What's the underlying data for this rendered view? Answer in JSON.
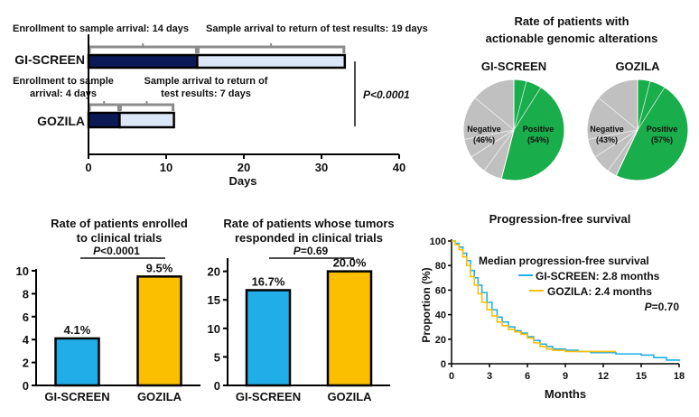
{
  "colors": {
    "dark_navy": "#0b1a57",
    "light_blue_fill": "#dbe6f6",
    "gray_bracket": "#8c8c8c",
    "pie_negative": "#c0c0c0",
    "pie_positive": "#1aad4b",
    "gi_screen": "#21aee8",
    "gozila": "#fbbf00"
  },
  "chart_data": [
    {
      "id": "timeline",
      "type": "bar",
      "orientation": "horizontal-stacked",
      "categories": [
        "GI-SCREEN",
        "GOZILA"
      ],
      "series": [
        {
          "name": "Enrollment to sample arrival",
          "values": [
            14,
            4
          ]
        },
        {
          "name": "Sample arrival to return of test results",
          "values": [
            19,
            7
          ]
        }
      ],
      "annotations": {
        "gi_seg1": "Enrollment to sample arrival: 14 days",
        "gi_seg2": "Sample arrival to return of test results: 19 days",
        "goz_seg1_line1": "Enrollment to sample",
        "goz_seg1_line2": "arrival: 4 days",
        "goz_seg2_line1": "Sample arrival to return of",
        "goz_seg2_line2": "test results: 7 days",
        "p_value": "P<0.0001"
      },
      "xlabel": "Days",
      "xlim": [
        0,
        40
      ],
      "xticks": [
        0,
        10,
        20,
        30,
        40
      ]
    },
    {
      "id": "pies",
      "type": "pie",
      "title_line1": "Rate of patients with",
      "title_line2": "actionable genomic alterations",
      "charts": [
        {
          "name": "GI-SCREEN",
          "slices": [
            {
              "label": "Negative",
              "pct_text": "(46%)",
              "value": 46
            },
            {
              "label": "Positive",
              "pct_text": "(54%)",
              "value": 54
            }
          ]
        },
        {
          "name": "GOZILA",
          "slices": [
            {
              "label": "Negative",
              "pct_text": "(43%)",
              "value": 43
            },
            {
              "label": "Positive",
              "pct_text": "(57%)",
              "value": 57
            }
          ]
        }
      ]
    },
    {
      "id": "enrolled",
      "type": "bar",
      "title_line1": "Rate of patients enrolled",
      "title_line2": "to clinical trials",
      "p_prefix": "P",
      "p_rest": "<0.0001",
      "categories": [
        "GI-SCREEN",
        "GOZILA"
      ],
      "values": [
        4.1,
        9.5
      ],
      "value_labels": [
        "4.1%",
        "9.5%"
      ],
      "ylim": [
        0,
        10
      ],
      "yticks": [
        0,
        2,
        4,
        6,
        8,
        10
      ]
    },
    {
      "id": "responded",
      "type": "bar",
      "title_line1": "Rate of patients whose tumors",
      "title_line2": "responded in clinical trials",
      "p_prefix": "P",
      "p_rest": "=0.69",
      "categories": [
        "GI-SCREEN",
        "GOZILA"
      ],
      "values": [
        16.7,
        20.0
      ],
      "value_labels": [
        "16.7%",
        "20.0%"
      ],
      "ylim": [
        0,
        22
      ],
      "yticks": [
        0,
        5,
        10,
        15,
        20
      ]
    },
    {
      "id": "pfs",
      "type": "line",
      "title": "Progression-free survival",
      "xlabel": "Months",
      "ylabel": "Proportion (%)",
      "xlim": [
        0,
        18
      ],
      "ylim": [
        0,
        100
      ],
      "xticks": [
        0,
        3,
        6,
        9,
        12,
        15,
        18
      ],
      "yticks": [
        0,
        20,
        40,
        60,
        80,
        100
      ],
      "legend_title": "Median progression-free survival",
      "p_prefix": "P",
      "p_rest": "=0.70",
      "series": [
        {
          "name": "GI-SCREEN: 2.8 months",
          "color_key": "gi_screen",
          "points": [
            [
              0,
              100
            ],
            [
              0.3,
              98
            ],
            [
              0.6,
              95
            ],
            [
              0.9,
              90
            ],
            [
              1.2,
              84
            ],
            [
              1.5,
              76
            ],
            [
              1.8,
              70
            ],
            [
              2.1,
              64
            ],
            [
              2.4,
              58
            ],
            [
              2.8,
              50
            ],
            [
              3.2,
              44
            ],
            [
              3.6,
              38
            ],
            [
              4.0,
              34
            ],
            [
              4.5,
              30
            ],
            [
              5.0,
              27
            ],
            [
              5.5,
              25
            ],
            [
              6.0,
              22
            ],
            [
              6.5,
              19
            ],
            [
              7.0,
              16
            ],
            [
              7.5,
              14
            ],
            [
              8.0,
              12
            ],
            [
              9.0,
              11
            ],
            [
              10.0,
              10
            ],
            [
              11.0,
              9
            ],
            [
              12.0,
              9
            ],
            [
              13.0,
              8
            ],
            [
              14.0,
              8
            ],
            [
              15.0,
              7
            ],
            [
              16.0,
              5
            ],
            [
              17.0,
              3
            ],
            [
              18.0,
              2
            ]
          ]
        },
        {
          "name": "GOZILA: 2.4 months",
          "color_key": "gozila",
          "points": [
            [
              0,
              100
            ],
            [
              0.3,
              97
            ],
            [
              0.6,
              93
            ],
            [
              0.9,
              87
            ],
            [
              1.2,
              80
            ],
            [
              1.5,
              71
            ],
            [
              1.8,
              64
            ],
            [
              2.1,
              57
            ],
            [
              2.4,
              50
            ],
            [
              2.8,
              44
            ],
            [
              3.2,
              39
            ],
            [
              3.6,
              34
            ],
            [
              4.0,
              31
            ],
            [
              4.5,
              28
            ],
            [
              5.0,
              26
            ],
            [
              5.5,
              24
            ],
            [
              6.0,
              21
            ],
            [
              6.5,
              17
            ],
            [
              7.0,
              14
            ],
            [
              7.5,
              12
            ],
            [
              8.0,
              11
            ],
            [
              9.0,
              10
            ],
            [
              10.0,
              10
            ],
            [
              11.0,
              10
            ],
            [
              12.0,
              10
            ],
            [
              13.0,
              10
            ]
          ]
        }
      ]
    }
  ]
}
